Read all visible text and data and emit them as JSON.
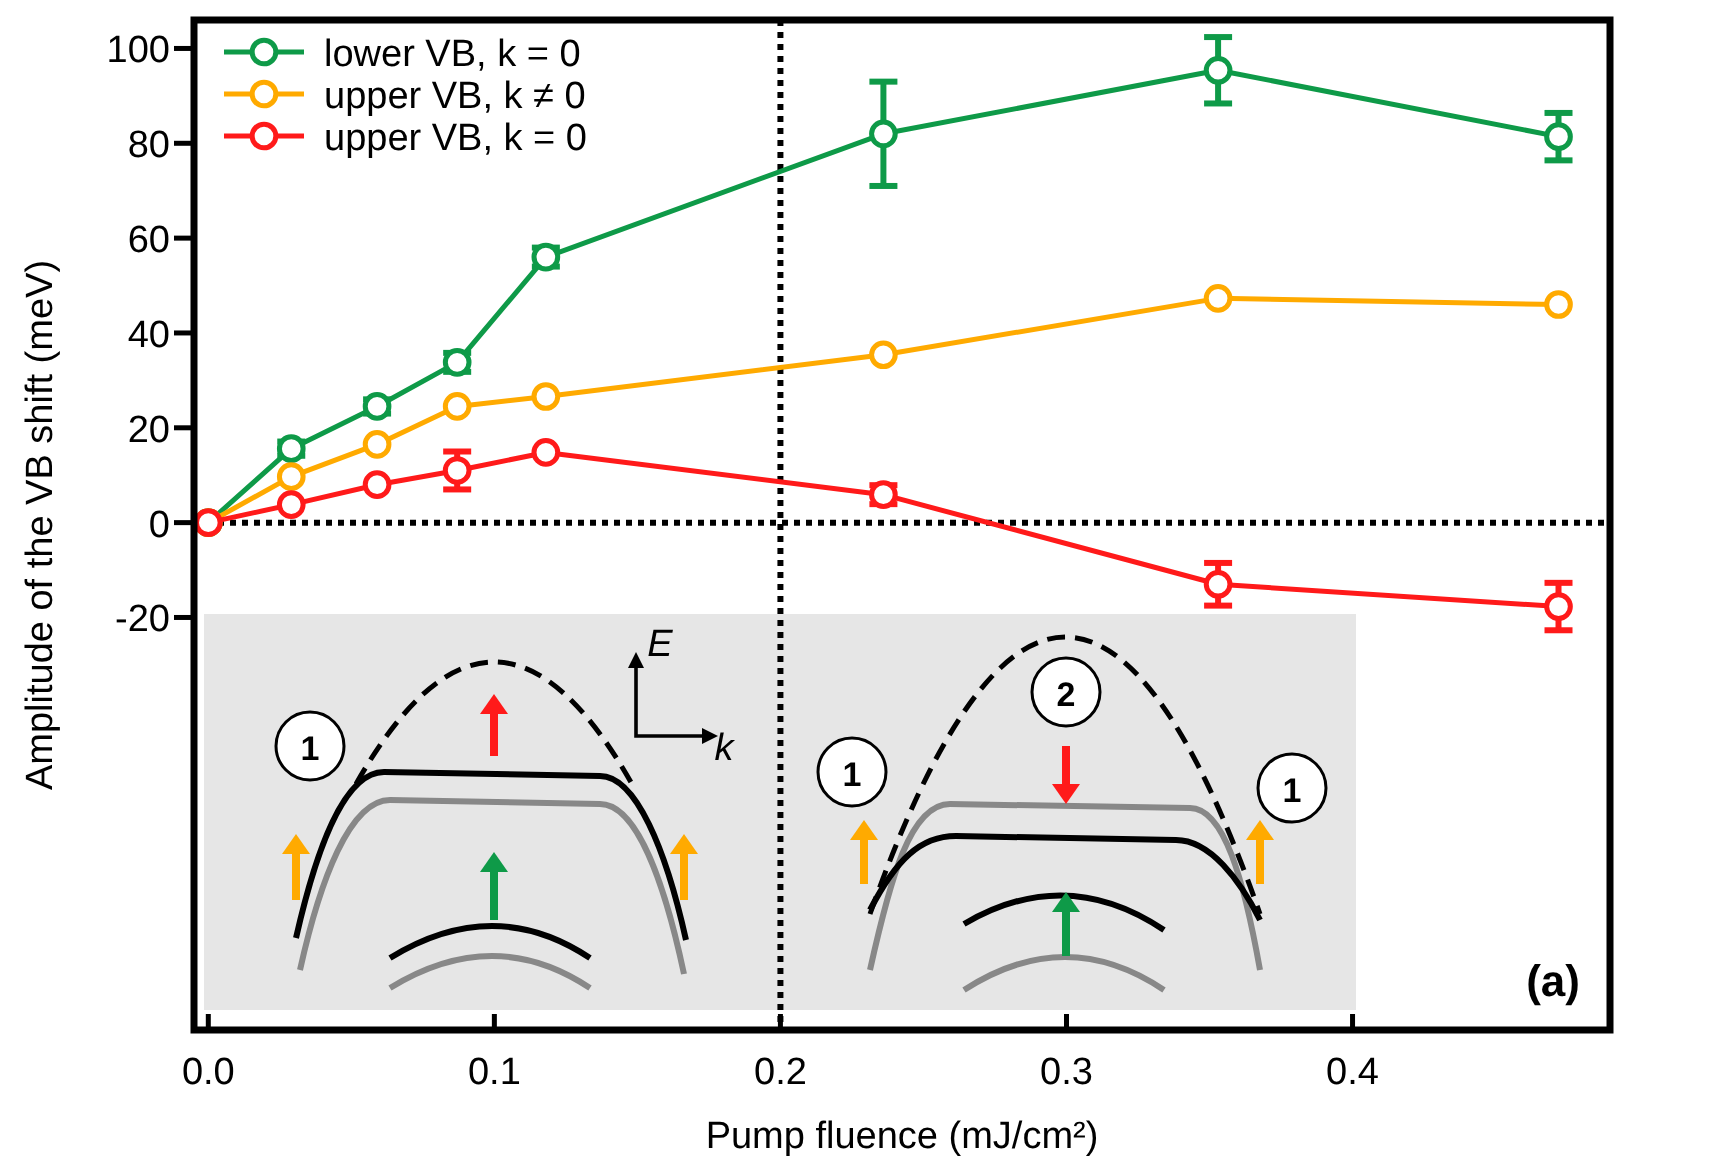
{
  "chart_data": {
    "type": "line",
    "xlabel": "Pump fluence (mJ/cm²)",
    "ylabel": "Amplitude of the VB shift (meV)",
    "x": [
      0,
      0.029,
      0.059,
      0.087,
      0.118,
      0.236,
      0.353,
      0.472
    ],
    "xlim": [
      -0.005,
      0.49
    ],
    "ylim": [
      -107,
      106
    ],
    "xticks": [
      {
        "value": 0,
        "label": "0.0"
      },
      0.1,
      0.2,
      0.3,
      0.4
    ],
    "yticks": [
      -20,
      0,
      20,
      40,
      60,
      80,
      100
    ],
    "series": [
      {
        "name": "lower VB, k = 0",
        "color": "#0e9a48",
        "values": [
          0,
          15.6,
          24.5,
          33.8,
          56,
          82,
          95.4,
          81.4
        ],
        "errors": [
          null,
          1.5,
          1.5,
          2,
          2,
          11,
          7,
          5
        ]
      },
      {
        "name": "upper VB, k ≠ 0",
        "color": "#ffaa00",
        "values": [
          0,
          9.7,
          16.5,
          24.5,
          26.6,
          35.4,
          47.3,
          46
        ]
      },
      {
        "name": "upper VB, k = 0",
        "color": "#ff1a1a",
        "values": [
          0,
          3.8,
          8,
          11,
          14.8,
          5.9,
          -13,
          -17.7
        ],
        "errors": [
          null,
          null,
          null,
          4,
          null,
          2,
          4.5,
          5
        ]
      }
    ],
    "ref_lines": [
      {
        "axis": "x",
        "value": 0.2,
        "color": "#000000",
        "line_style": "dotted"
      },
      {
        "axis": "y",
        "value": 0,
        "color": "#000000",
        "line_style": "dotted"
      }
    ],
    "annotations": [
      "(a)",
      "1",
      "E",
      "k",
      "1",
      "2",
      "1"
    ],
    "marker": "circle",
    "line_style": "solid",
    "legend": "top left",
    "grid": false
  }
}
